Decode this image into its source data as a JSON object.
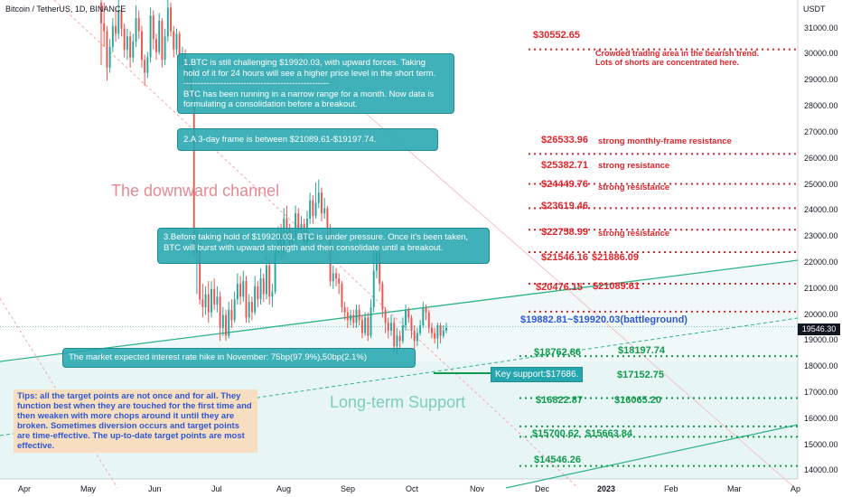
{
  "header": {
    "title": "Bitcoin / TetherUS, 1D, BINANCE",
    "currency": "USDT"
  },
  "chart_data": {
    "type": "candlestick",
    "y_axis": {
      "ticks": [
        14000,
        15000,
        16000,
        17000,
        18000,
        19000,
        20000,
        21000,
        22000,
        23000,
        24000,
        25000,
        26000,
        27000,
        28000,
        29000,
        30000,
        31000
      ],
      "ylim": [
        13700,
        32100
      ],
      "tick_labels": [
        "14000.00",
        "15000.00",
        "16000.00",
        "17000.00",
        "18000.00",
        "19000.00",
        "20000.00",
        "21000.00",
        "22000.00",
        "23000.00",
        "24000.00",
        "25000.00",
        "26000.00",
        "27000.00",
        "28000.00",
        "29000.00",
        "30000.00",
        "31000.00"
      ]
    },
    "x_axis": {
      "labels": [
        "Apr",
        "May",
        "Jun",
        "Jul",
        "Aug",
        "Sep",
        "Oct",
        "Nov",
        "Dec",
        "2023",
        "Feb",
        "Mar",
        "Ap"
      ]
    },
    "last_price": "19546.30",
    "candles": [
      [
        32000,
        31200,
        32100,
        29600
      ],
      [
        31200,
        30900,
        32000,
        30300
      ],
      [
        30900,
        29500,
        31100,
        29000
      ],
      [
        29500,
        30300,
        30600,
        29300
      ],
      [
        30300,
        31100,
        31400,
        30100
      ],
      [
        31100,
        30800,
        31800,
        30500
      ],
      [
        30800,
        31700,
        32100,
        30600
      ],
      [
        31700,
        31000,
        31900,
        30700
      ],
      [
        31000,
        30200,
        31200,
        29900
      ],
      [
        30200,
        30700,
        31000,
        29800
      ],
      [
        30700,
        29900,
        30900,
        29500
      ],
      [
        29900,
        30500,
        30800,
        29700
      ],
      [
        30500,
        31400,
        31900,
        30300
      ],
      [
        31400,
        30900,
        31700,
        30600
      ],
      [
        30900,
        29800,
        31100,
        29500
      ],
      [
        29800,
        29300,
        30000,
        28800
      ],
      [
        29300,
        29900,
        30100,
        29100
      ],
      [
        29900,
        31500,
        31800,
        29700
      ],
      [
        31500,
        30600,
        31700,
        30200
      ],
      [
        30600,
        30100,
        30800,
        29800
      ],
      [
        30100,
        31300,
        31600,
        30000
      ],
      [
        31300,
        29800,
        31400,
        29500
      ],
      [
        29800,
        30700,
        31000,
        29600
      ],
      [
        30700,
        31800,
        32100,
        30500
      ],
      [
        31800,
        30900,
        32000,
        30700
      ],
      [
        30900,
        30200,
        31100,
        29900
      ],
      [
        30200,
        30800,
        31000,
        30000
      ],
      [
        30800,
        29600,
        30900,
        29400
      ],
      [
        29600,
        30000,
        30300,
        29400
      ],
      [
        30000,
        29100,
        30200,
        28800
      ],
      [
        29100,
        29700,
        29900,
        28900
      ],
      [
        29700,
        28500,
        29800,
        28300
      ],
      [
        28500,
        22400,
        28600,
        22200
      ],
      [
        22400,
        22500,
        23300,
        20800
      ],
      [
        22500,
        20600,
        22800,
        20400
      ],
      [
        20600,
        20300,
        21200,
        19900
      ],
      [
        20300,
        20800,
        21100,
        20000
      ],
      [
        20800,
        20100,
        21300,
        19700
      ],
      [
        20100,
        21000,
        21300,
        19900
      ],
      [
        21000,
        20400,
        21400,
        20200
      ],
      [
        20400,
        20700,
        21100,
        20100
      ],
      [
        20700,
        19500,
        20900,
        19000
      ],
      [
        19500,
        20000,
        20300,
        19200
      ],
      [
        20000,
        19200,
        20200,
        19000
      ],
      [
        19200,
        20200,
        20500,
        19100
      ],
      [
        20200,
        19800,
        20600,
        19500
      ],
      [
        19800,
        20600,
        20900,
        19700
      ],
      [
        20600,
        21200,
        21600,
        20400
      ],
      [
        21200,
        20700,
        21500,
        20400
      ],
      [
        20700,
        21300,
        21700,
        20500
      ],
      [
        21300,
        19900,
        21500,
        19700
      ],
      [
        19900,
        20500,
        20800,
        19700
      ],
      [
        20500,
        20100,
        20700,
        19800
      ],
      [
        20100,
        21100,
        21500,
        20000
      ],
      [
        21100,
        20600,
        21300,
        20300
      ],
      [
        20600,
        21400,
        21800,
        20400
      ],
      [
        21400,
        20800,
        21600,
        20500
      ],
      [
        20800,
        21900,
        22300,
        20600
      ],
      [
        21900,
        20700,
        22100,
        20400
      ],
      [
        20700,
        20900,
        21200,
        20300
      ],
      [
        20900,
        22400,
        22700,
        20800
      ],
      [
        22400,
        23100,
        23400,
        22200
      ],
      [
        23100,
        22500,
        23500,
        22100
      ],
      [
        22500,
        23700,
        24100,
        22300
      ],
      [
        23700,
        23300,
        24200,
        23000
      ],
      [
        23300,
        22700,
        23500,
        22400
      ],
      [
        22700,
        23000,
        23300,
        22500
      ],
      [
        23000,
        23900,
        24200,
        22800
      ],
      [
        23900,
        23200,
        24100,
        22900
      ],
      [
        23200,
        23500,
        23800,
        23000
      ],
      [
        23500,
        22800,
        23700,
        22500
      ],
      [
        22800,
        23700,
        24000,
        22600
      ],
      [
        23700,
        24400,
        24700,
        23500
      ],
      [
        24400,
        23800,
        24600,
        23500
      ],
      [
        23800,
        24300,
        25100,
        23700
      ],
      [
        24300,
        24700,
        25200,
        24100
      ],
      [
        24700,
        23900,
        24900,
        23600
      ],
      [
        23900,
        24100,
        24500,
        23700
      ],
      [
        24100,
        23300,
        24200,
        23000
      ],
      [
        23300,
        21300,
        23500,
        21100
      ],
      [
        21300,
        21600,
        21900,
        21000
      ],
      [
        21600,
        21400,
        21800,
        21100
      ],
      [
        21400,
        21200,
        21600,
        20800
      ],
      [
        21200,
        20300,
        21300,
        20100
      ],
      [
        20300,
        20100,
        20500,
        19800
      ],
      [
        20100,
        19800,
        20300,
        19500
      ],
      [
        19800,
        20000,
        20200,
        19600
      ],
      [
        20000,
        19700,
        20200,
        19500
      ],
      [
        19700,
        20200,
        20400,
        19500
      ],
      [
        20200,
        19800,
        20400,
        19600
      ],
      [
        19800,
        19300,
        20000,
        19100
      ],
      [
        19300,
        19900,
        20100,
        19200
      ],
      [
        19900,
        19200,
        20100,
        19000
      ],
      [
        19200,
        20300,
        20600,
        19100
      ],
      [
        20300,
        21700,
        22600,
        20100
      ],
      [
        21700,
        22400,
        22600,
        21400
      ],
      [
        22400,
        21200,
        22500,
        20900
      ],
      [
        21200,
        20200,
        21300,
        19900
      ],
      [
        20200,
        19700,
        20300,
        19300
      ],
      [
        19700,
        19400,
        19900,
        19100
      ],
      [
        19400,
        19700,
        20000,
        19200
      ],
      [
        19700,
        18800,
        19900,
        18600
      ],
      [
        18800,
        19200,
        19500,
        18500
      ],
      [
        19200,
        19000,
        19400,
        18700
      ],
      [
        19000,
        19600,
        19900,
        18900
      ],
      [
        19600,
        20200,
        20400,
        19400
      ],
      [
        20200,
        19900,
        20300,
        19700
      ],
      [
        19900,
        19400,
        20000,
        19100
      ],
      [
        19400,
        19000,
        19600,
        18700
      ],
      [
        19000,
        19300,
        19500,
        18800
      ],
      [
        19300,
        19600,
        19800,
        19200
      ],
      [
        19600,
        20300,
        20500,
        19500
      ],
      [
        20300,
        20100,
        20400,
        19800
      ],
      [
        20100,
        19500,
        20200,
        19300
      ],
      [
        19500,
        19300,
        19700,
        19100
      ],
      [
        19300,
        19100,
        19500,
        18900
      ],
      [
        19100,
        19600,
        19700,
        18700
      ],
      [
        19600,
        19200,
        19700,
        18900
      ],
      [
        19200,
        19400,
        19600,
        19100
      ],
      [
        19400,
        19500,
        19700,
        19300
      ]
    ],
    "channel_and_support": {
      "downward_channel_lines": [
        [
          [
            0,
            30900
          ],
          [
            470,
            30900
          ]
        ]
      ],
      "lines": "diagonal trend lines"
    },
    "resistance_levels": [
      30552.65,
      26533.96,
      25382.71,
      24449.76,
      23619.46,
      22758.99,
      21546.16,
      21886.09,
      20476.15,
      21089.61
    ],
    "support_levels": [
      18762.86,
      18197.74,
      17686,
      17152.75,
      16822.87,
      16065.2,
      15700.62,
      15663.84,
      14546.26
    ]
  },
  "notes": {
    "note1_l1": "1.BTC is still challenging $19920.03, with upward forces. Taking",
    "note1_l2": "hold of it for 24 hours will see a higher price level in the short term.",
    "note1_l3": "---------------------------------------------------",
    "note1_l4": "BTC has been running in a narrow range for a month. Now data is",
    "note1_l5": "formulating a consolidation before a breakout.",
    "note2": "2.A 3-day frame is between $21089.61-$19197.74.",
    "note3_l1": "3.Before taking hold of $19920.03, BTC is under pressure. Once it's been taken,",
    "note3_l2": "BTC will burst with upward strength and then consolidate until a breakout.",
    "note4": "The market expected interest rate hike in November: 75bp(97.9%),50bp(2.1%)",
    "crowded_l1": "Crowded trading area in the bearish trend.",
    "crowded_l2": "Lots of shorts are concentrated here.",
    "tips": "Tips: all the target points are not once and for all. They function best when they are touched for the first time and then weaken with more chops around it until they are broken. Sometimes diversion occurs and target points are time-effective. The up-to-date target points are most effective."
  },
  "labels": {
    "downward_channel": "The downward channel",
    "long_term_support": "Long-term Support",
    "key_support": "Key support:$17686.",
    "battleground": "$19882.81~$19920.03(battleground)",
    "p30552": "$30552.65",
    "p26533": "$26533.96",
    "p26533_desc": "strong monthly-frame resistance",
    "p25382": "$25382.71",
    "p25382_desc": "strong resistance",
    "p24449": "$24449.76",
    "p24449_desc": "strong resistance",
    "p23619": "$23619.46",
    "p22758": "$22758.99",
    "p22758_desc": "strong resistance",
    "p21546": "$21546.16",
    "p21886": "$21886.09",
    "p20476": "$20476.15",
    "p21089": "$21089.61",
    "p18762": "$18762.86",
    "p18197": "$18197.74",
    "p17152": "$17152.75",
    "p16822": "$16822.87",
    "p16065": "$16065.20",
    "p15700": "$15700.62",
    "p15663": "$15663.84",
    "p14546": "$14546.26"
  },
  "colors": {
    "up": "#26a69a",
    "down": "#ef5350",
    "resistance": "#e0262c",
    "support": "#109a4d",
    "teal": "#26a6ae",
    "blue": "#2f57d4"
  }
}
